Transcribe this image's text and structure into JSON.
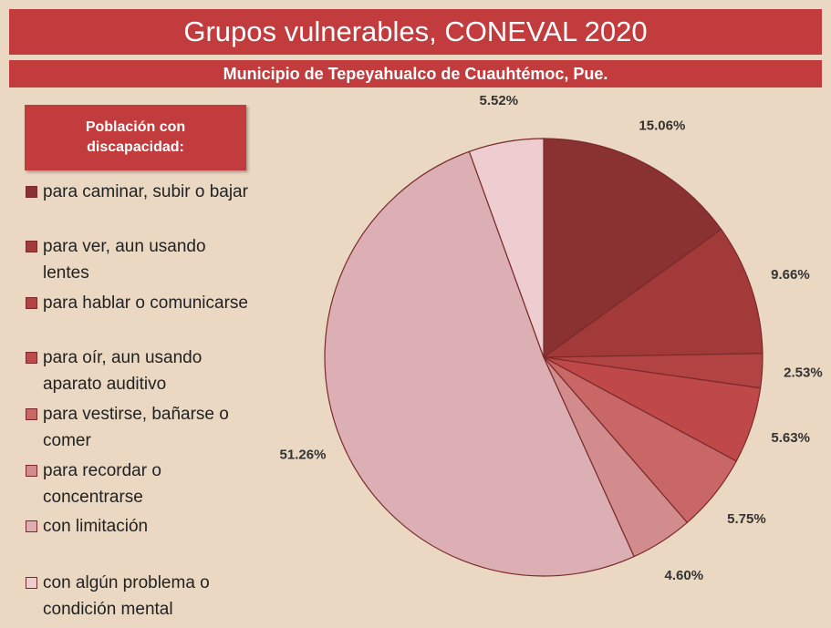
{
  "chart_data": {
    "type": "pie",
    "title": "Grupos vulnerables, CONEVAL 2020",
    "subtitle": "Municipio de Tepeyahualco de Cuauhtémoc, Pue.",
    "legend_title": "Población con discapacidad:",
    "categories": [
      "para caminar, subir o bajar",
      "para ver, aun usando lentes",
      "para hablar o comunicarse",
      "para oír, aun usando aparato auditivo",
      "para vestirse, bañarse o comer",
      "para recordar o concentrarse",
      "con limitación",
      "con algún problema o condición mental"
    ],
    "values": [
      15.06,
      9.66,
      2.53,
      5.63,
      5.75,
      4.6,
      51.26,
      5.52
    ],
    "value_labels": [
      "15.06%",
      "9.66%",
      "2.53%",
      "5.63%",
      "5.75%",
      "4.60%",
      "51.26%",
      "5.52%"
    ],
    "colors": [
      "#8a3131",
      "#a23a3a",
      "#b24343",
      "#bf4848",
      "#c96767",
      "#d28c8d",
      "#dbafb3",
      "#edcdd0"
    ],
    "legend": "left"
  }
}
